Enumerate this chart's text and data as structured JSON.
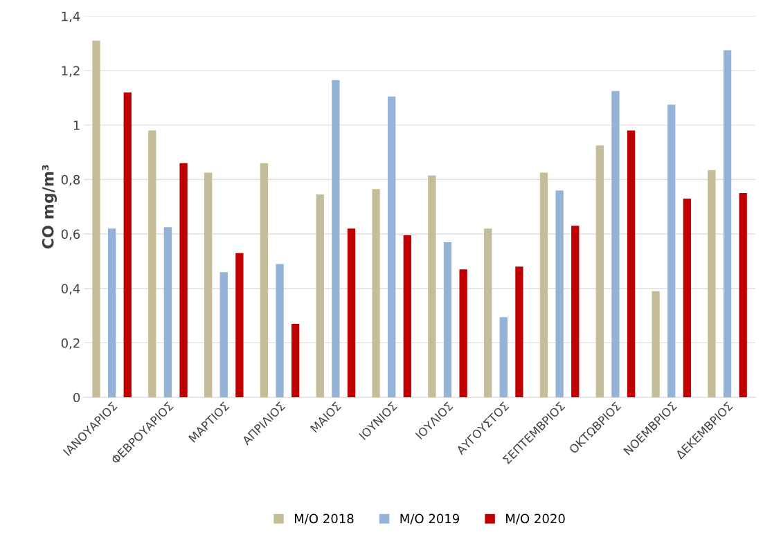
{
  "chart_data": {
    "type": "bar",
    "ylabel": "CO mg/m³",
    "categories": [
      "ΙΑΝΟΥΑΡΙΟΣ",
      "ΦΕΒΡΟΥΑΡΙΟΣ",
      "ΜΑΡΤΙΟΣ",
      "ΑΠΡΙΛΙΟΣ",
      "ΜΑΙΟΣ",
      "ΙΟΥΝΙΟΣ",
      "ΙΟΥΛΙΟΣ",
      "ΑΥΓΟΥΣΤΟΣ",
      "ΣΕΠΤΕΜΒΡΙΟΣ",
      "ΟΚΤΩΒΡΙΟΣ",
      "ΝΟΕΜΒΡΙΟΣ",
      "ΔΕΚΕΜΒΡΙΟΣ"
    ],
    "series": [
      {
        "name": "Μ/Ο 2018",
        "color": "#c4bd97",
        "values": [
          1.31,
          0.98,
          0.825,
          0.86,
          0.745,
          0.765,
          0.815,
          0.62,
          0.825,
          0.925,
          0.39,
          0.835
        ]
      },
      {
        "name": "Μ/Ο 2019",
        "color": "#95b3d7",
        "values": [
          0.62,
          0.625,
          0.46,
          0.49,
          1.165,
          1.105,
          0.57,
          0.295,
          0.76,
          1.125,
          1.075,
          1.275
        ]
      },
      {
        "name": "Μ/Ο 2020",
        "color": "#c00000",
        "values": [
          1.12,
          0.86,
          0.53,
          0.27,
          0.62,
          0.595,
          0.47,
          0.48,
          0.63,
          0.98,
          0.73,
          0.75
        ]
      }
    ],
    "ylim": [
      0,
      1.4
    ],
    "yticks": [
      0,
      {
        "value": 0.2,
        "label": "0,2"
      },
      {
        "value": 0.4,
        "label": "0,4"
      },
      {
        "value": 0.6,
        "label": "0,6"
      },
      {
        "value": 0.8,
        "label": "0,8"
      },
      1,
      {
        "value": 1.2,
        "label": "1,2"
      },
      {
        "value": 1.4,
        "label": "1,4"
      }
    ],
    "grid": "y",
    "legend": "bottom"
  }
}
